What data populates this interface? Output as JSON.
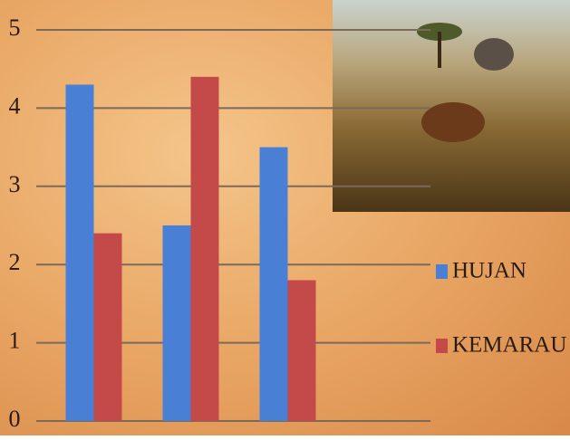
{
  "chart_data": {
    "type": "bar",
    "categories": [
      null,
      null,
      null
    ],
    "series": [
      {
        "name": "HUJAN",
        "color": "#4a7fd6",
        "values": [
          4.3,
          2.5,
          3.5
        ]
      },
      {
        "name": "KEMARAU",
        "color": "#c44a4a",
        "values": [
          2.4,
          4.4,
          1.8
        ]
      }
    ],
    "ylim": [
      0,
      5
    ],
    "yticks": [
      0,
      1,
      2,
      3,
      4,
      5
    ],
    "grid": true,
    "legend": "right"
  }
}
